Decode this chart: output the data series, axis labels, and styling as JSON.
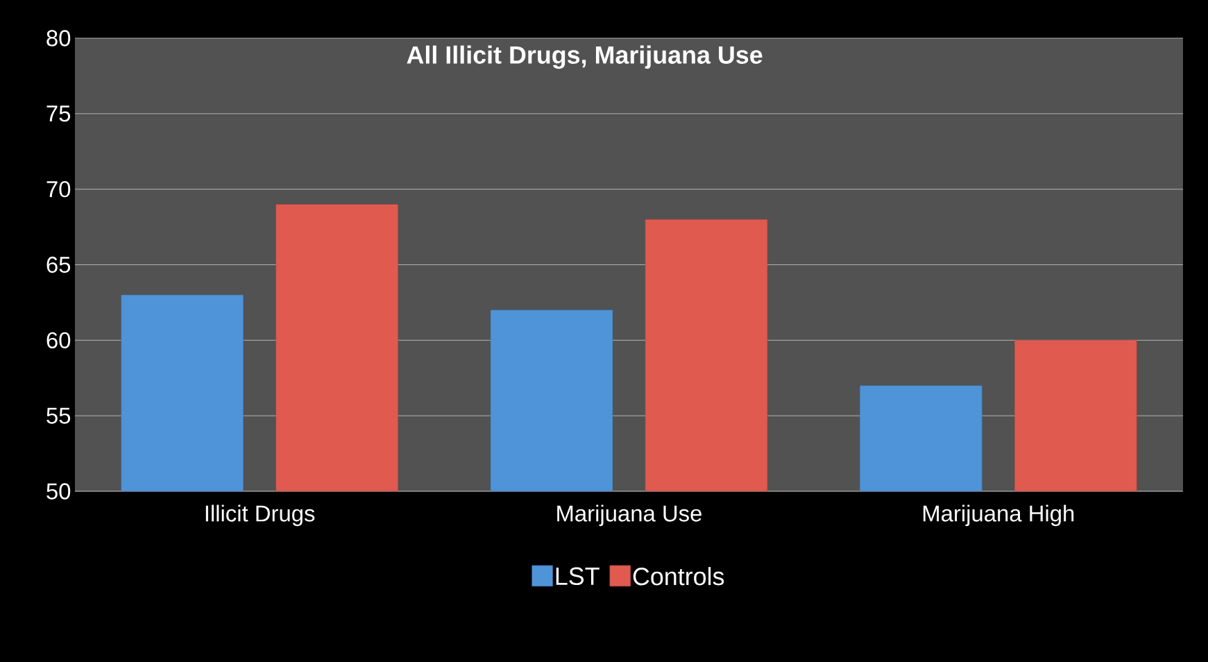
{
  "chart_data": {
    "type": "bar",
    "title": "All Illicit Drugs, Marijuana Use",
    "categories": [
      "Illicit Drugs",
      "Marijuana Use",
      "Marijuana High"
    ],
    "series": [
      {
        "name": "LST",
        "color": "#4f94d8",
        "values": [
          63,
          62,
          57
        ]
      },
      {
        "name": "Controls",
        "color": "#e05a50",
        "values": [
          69,
          68,
          60
        ]
      }
    ],
    "ylim": [
      50,
      80
    ],
    "yticks": [
      50,
      55,
      60,
      65,
      70,
      75,
      80
    ],
    "grid": "y",
    "legend": "bottom"
  }
}
